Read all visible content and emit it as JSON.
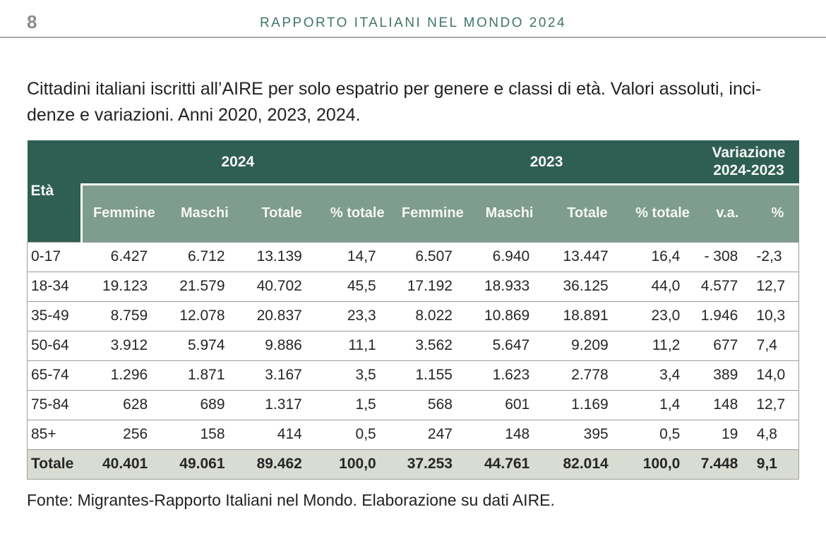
{
  "page": {
    "number": "8",
    "running_title": "RAPPORTO ITALIANI NEL MONDO 2024"
  },
  "caption": {
    "lines": [
      "Cittadini italiani iscritti all’AIRE per solo espatrio per genere e classi di età. Valori assoluti, inci-",
      "denze e variazioni. Anni 2020, 2023, 2024."
    ]
  },
  "table": {
    "eta_label": "Età",
    "groups": [
      {
        "label": "2024",
        "sublabel": ""
      },
      {
        "label": "2023",
        "sublabel": ""
      },
      {
        "label": "Variazione",
        "sublabel": "2024-2023"
      }
    ],
    "columns": [
      "Femmine",
      "Maschi",
      "Totale",
      "% totale",
      "Femmine",
      "Maschi",
      "Totale",
      "% totale",
      "v.a.",
      "%"
    ],
    "rows": [
      {
        "eta": "0-17",
        "values": [
          "6.427",
          "6.712",
          "13.139",
          "14,7",
          "6.507",
          "6.940",
          "13.447",
          "16,4",
          "- 308",
          "-2,3"
        ]
      },
      {
        "eta": "18-34",
        "values": [
          "19.123",
          "21.579",
          "40.702",
          "45,5",
          "17.192",
          "18.933",
          "36.125",
          "44,0",
          "4.577",
          "12,7"
        ]
      },
      {
        "eta": "35-49",
        "values": [
          "8.759",
          "12.078",
          "20.837",
          "23,3",
          "8.022",
          "10.869",
          "18.891",
          "23,0",
          "1.946",
          "10,3"
        ]
      },
      {
        "eta": "50-64",
        "values": [
          "3.912",
          "5.974",
          "9.886",
          "11,1",
          "3.562",
          "5.647",
          "9.209",
          "11,2",
          "677",
          "7,4"
        ]
      },
      {
        "eta": "65-74",
        "values": [
          "1.296",
          "1.871",
          "3.167",
          "3,5",
          "1.155",
          "1.623",
          "2.778",
          "3,4",
          "389",
          "14,0"
        ]
      },
      {
        "eta": "75-84",
        "values": [
          "628",
          "689",
          "1.317",
          "1,5",
          "568",
          "601",
          "1.169",
          "1,4",
          "148",
          "12,7"
        ]
      },
      {
        "eta": "85+",
        "values": [
          "256",
          "158",
          "414",
          "0,5",
          "247",
          "148",
          "395",
          "0,5",
          "19",
          "4,8"
        ]
      }
    ],
    "total_row": {
      "eta": "Totale",
      "values": [
        "40.401",
        "49.061",
        "89.462",
        "100,0",
        "37.253",
        "44.761",
        "82.014",
        "100,0",
        "7.448",
        "9,1"
      ]
    }
  },
  "source": "Fonte: Migrantes-Rapporto Italiani nel Mondo. Elaborazione su dati AIRE.",
  "colors": {
    "header_green": "#2f5f53",
    "subheader_green": "#7e9c8f",
    "total_row_bg": "#d8dcd2",
    "running_title_green": "#41756a",
    "border_gray": "#9c9c9c",
    "page_num_gray": "#8d8d8d"
  }
}
